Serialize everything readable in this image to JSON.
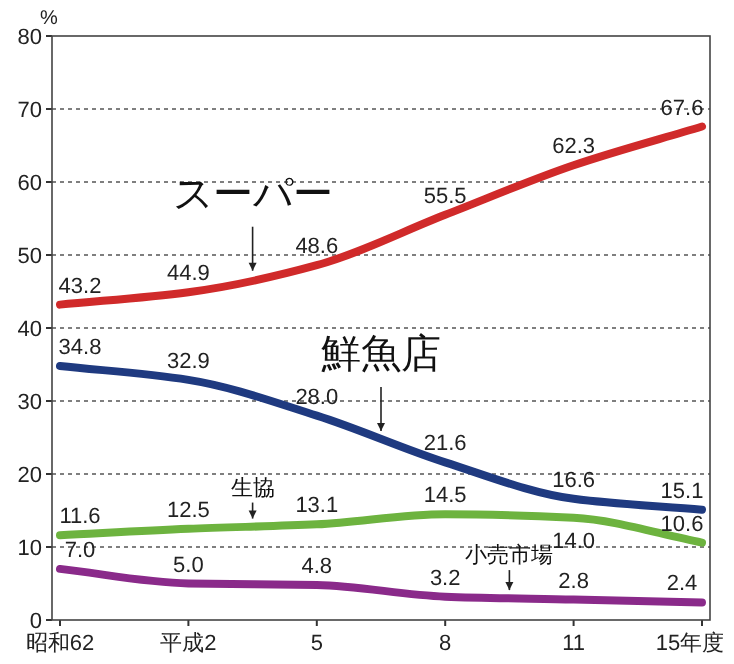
{
  "chart_data": {
    "type": "line",
    "ylabel": "%",
    "categories": [
      "昭和62",
      "平成2",
      "5",
      "8",
      "11",
      "15年度"
    ],
    "series": [
      {
        "name": "スーパー",
        "color": "#d02a2a",
        "values": [
          43.2,
          44.9,
          48.6,
          55.5,
          62.3,
          67.6
        ],
        "value_labels": [
          "43.2",
          "44.9",
          "48.6",
          "55.5",
          "62.3",
          "67.6"
        ]
      },
      {
        "name": "鮮魚店",
        "color": "#1f3a80",
        "values": [
          34.8,
          32.9,
          28.0,
          21.6,
          16.6,
          15.1
        ],
        "value_labels": [
          "34.8",
          "32.9",
          "28.0",
          "21.6",
          "16.6",
          "15.1"
        ]
      },
      {
        "name": "生協",
        "color": "#6db33f",
        "values": [
          11.6,
          12.5,
          13.1,
          14.5,
          14.0,
          10.6
        ],
        "value_labels": [
          "11.6",
          "12.5",
          "13.1",
          "14.5",
          "14.0",
          "10.6"
        ]
      },
      {
        "name": "小売市場",
        "color": "#8a2a8a",
        "values": [
          7.0,
          5.0,
          4.8,
          3.2,
          2.8,
          2.4
        ],
        "value_labels": [
          "7.0",
          "5.0",
          "4.8",
          "3.2",
          "2.8",
          "2.4"
        ]
      }
    ],
    "ylim": [
      0,
      80
    ],
    "yticks": [
      0,
      10,
      20,
      30,
      40,
      50,
      60,
      70,
      80
    ],
    "grid": "y",
    "line_style": "solid",
    "marker": "none"
  }
}
